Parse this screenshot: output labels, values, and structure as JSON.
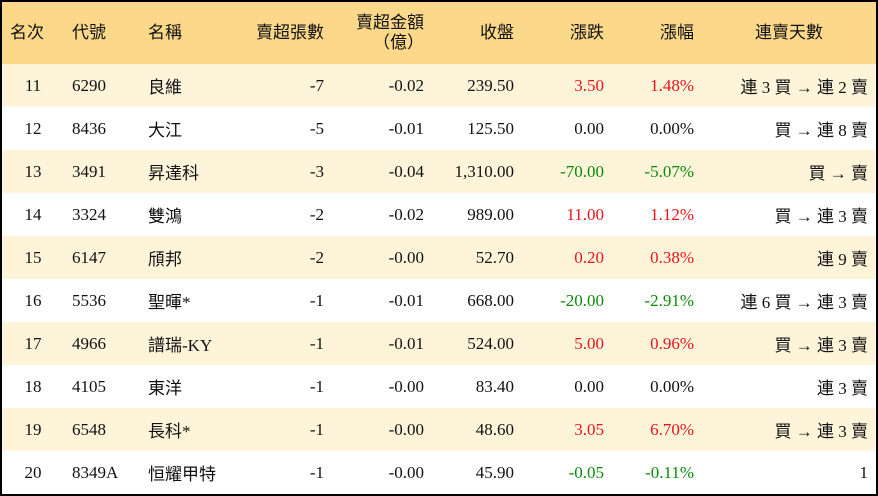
{
  "table": {
    "header": [
      "名次",
      "代號",
      "名稱",
      "賣超張數",
      "賣超金額\n（億）",
      "收盤",
      "漲跌",
      "漲幅",
      "連賣天數"
    ],
    "rows": [
      [
        "11",
        "6290",
        "良維",
        "-7",
        "-0.02",
        "239.50",
        "3.50",
        "1.48%",
        "連 3 買 → 連 2 賣"
      ],
      [
        "12",
        "8436",
        "大江",
        "-5",
        "-0.01",
        "125.50",
        "0.00",
        "0.00%",
        "買 → 連 8 賣"
      ],
      [
        "13",
        "3491",
        "昇達科",
        "-3",
        "-0.04",
        "1,310.00",
        "-70.00",
        "-5.07%",
        "買 → 賣"
      ],
      [
        "14",
        "3324",
        "雙鴻",
        "-2",
        "-0.02",
        "989.00",
        "11.00",
        "1.12%",
        "買 → 連 3 賣"
      ],
      [
        "15",
        "6147",
        "頎邦",
        "-2",
        "-0.00",
        "52.70",
        "0.20",
        "0.38%",
        "連 9 賣"
      ],
      [
        "16",
        "5536",
        "聖暉*",
        "-1",
        "-0.01",
        "668.00",
        "-20.00",
        "-2.91%",
        "連 6 買 → 連 3 賣"
      ],
      [
        "17",
        "4966",
        "譜瑞-KY",
        "-1",
        "-0.01",
        "524.00",
        "5.00",
        "0.96%",
        "買 → 連 3 賣"
      ],
      [
        "18",
        "4105",
        "東洋",
        "-1",
        "-0.00",
        "83.40",
        "0.00",
        "0.00%",
        "連 3 賣"
      ],
      [
        "19",
        "6548",
        "長科*",
        "-1",
        "-0.00",
        "48.60",
        "3.05",
        "6.70%",
        "買 → 連 3 賣"
      ],
      [
        "20",
        "8349A",
        "恒耀甲特",
        "-1",
        "-0.00",
        "45.90",
        "-0.05",
        "-0.11%",
        "1"
      ]
    ]
  }
}
